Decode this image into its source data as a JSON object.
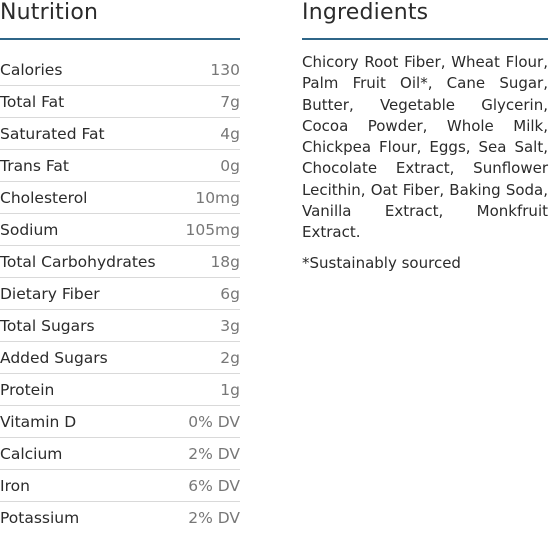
{
  "nutrition": {
    "title": "Nutrition",
    "rows": [
      {
        "label": "Calories",
        "value": "130"
      },
      {
        "label": "Total Fat",
        "value": "7g"
      },
      {
        "label": "Saturated Fat",
        "value": "4g"
      },
      {
        "label": "Trans Fat",
        "value": "0g"
      },
      {
        "label": "Cholesterol",
        "value": "10mg"
      },
      {
        "label": "Sodium",
        "value": "105mg"
      },
      {
        "label": "Total Carbohydrates",
        "value": "18g"
      },
      {
        "label": "Dietary Fiber",
        "value": "6g"
      },
      {
        "label": "Total Sugars",
        "value": "3g"
      },
      {
        "label": "Added Sugars",
        "value": "2g"
      },
      {
        "label": "Protein",
        "value": "1g"
      },
      {
        "label": "Vitamin D",
        "value": "0% DV"
      },
      {
        "label": "Calcium",
        "value": "2% DV"
      },
      {
        "label": "Iron",
        "value": "6% DV"
      },
      {
        "label": "Potassium",
        "value": "2% DV"
      }
    ]
  },
  "ingredients": {
    "title": "Ingredients",
    "text": "Chicory Root Fiber, Wheat Flour, Palm Fruit Oil*, Cane Sugar, Butter, Vegetable Glycerin, Cocoa Powder, Whole Milk, Chickpea Flour, Eggs, Sea Salt, Chocolate Extract, Sunflower Lecithin, Oat Fiber, Baking Soda, Vanilla Extract, Monkfruit Extract.",
    "note": "*Sustainably sourced"
  },
  "colors": {
    "accent_rule": "#2f6688",
    "row_divider": "#d9d9d9",
    "value_text": "#777777"
  }
}
